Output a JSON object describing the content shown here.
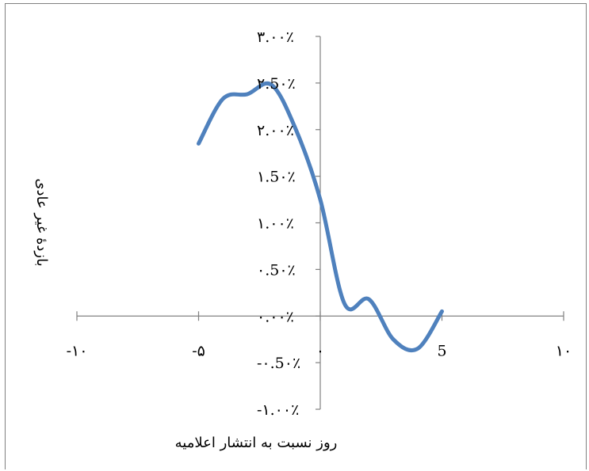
{
  "chart_data": {
    "type": "line",
    "title": "",
    "xlabel": "روز نسبت به انتشار اعلامیه",
    "ylabel": "بازدۀ غیر عادی",
    "xlim": [
      -10,
      10
    ],
    "ylim": [
      -1.0,
      3.0
    ],
    "x_ticks": [
      -10,
      -5,
      0,
      5,
      10
    ],
    "x_tick_labels": [
      "-۱۰",
      "-۵",
      "۰",
      "5",
      "۱۰"
    ],
    "y_ticks": [
      -1.0,
      -0.5,
      0.0,
      0.5,
      1.0,
      1.5,
      2.0,
      2.5,
      3.0
    ],
    "y_tick_labels": [
      "-۱.۰۰٪",
      "-۰.5۰٪",
      "۰.۰۰٪",
      "۰.5۰٪",
      "۱.۰۰٪",
      "۱.5۰٪",
      "۲.۰۰٪",
      "۲.5۰٪",
      "۳.۰۰٪"
    ],
    "grid": false,
    "legend": "none",
    "line_color": "#4f81bd",
    "series": [
      {
        "x": [
          -5,
          -4,
          -3,
          -2,
          -1,
          0,
          1,
          2,
          3,
          4,
          5
        ],
        "y": [
          1.85,
          2.33,
          2.38,
          2.48,
          2.0,
          1.25,
          0.13,
          0.18,
          -0.25,
          -0.35,
          0.05
        ]
      }
    ]
  }
}
